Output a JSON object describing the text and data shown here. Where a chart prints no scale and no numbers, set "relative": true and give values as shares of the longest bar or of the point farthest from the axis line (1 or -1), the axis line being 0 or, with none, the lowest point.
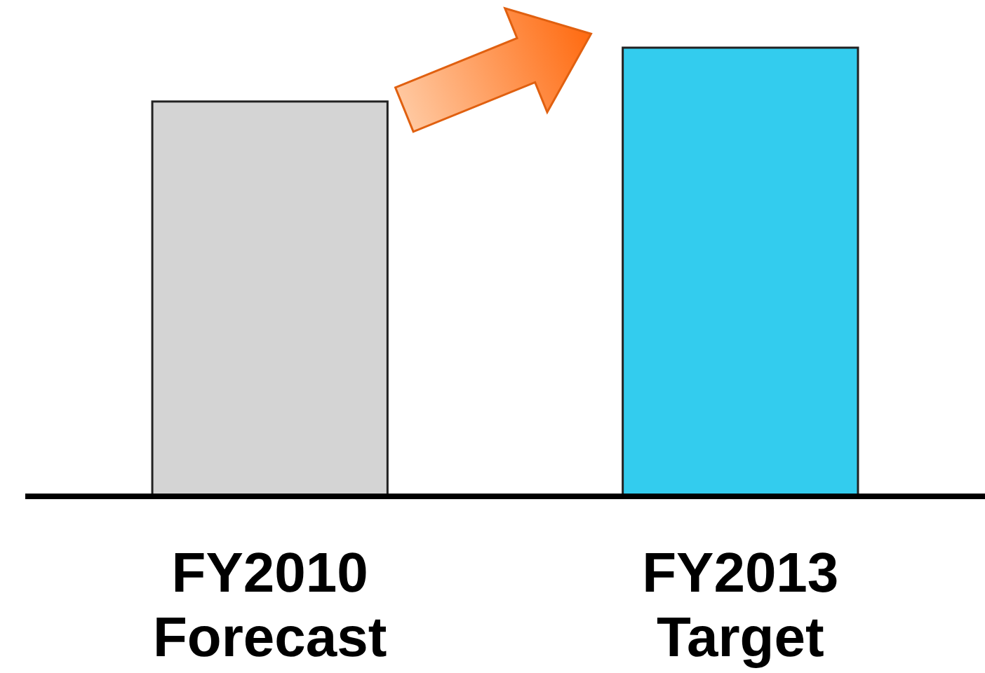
{
  "chart_data": {
    "type": "bar",
    "relative": true,
    "categories": [
      "FY2010 Forecast",
      "FY2013 Target"
    ],
    "values": [
      0.88,
      1
    ],
    "colors": [
      "#d4d4d4",
      "#33ccee"
    ]
  }
}
